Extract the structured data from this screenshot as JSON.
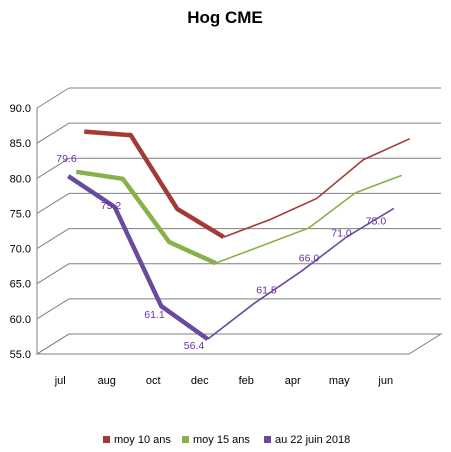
{
  "chart_data": {
    "type": "line",
    "subtype": "3d-line",
    "title": "Hog CME",
    "categories": [
      "jul",
      "aug",
      "oct",
      "dec",
      "feb",
      "apr",
      "may",
      "jun"
    ],
    "ylim": [
      55,
      90
    ],
    "yticks": [
      "55.0",
      "60.0",
      "65.0",
      "70.0",
      "75.0",
      "80.0",
      "85.0",
      "90.0"
    ],
    "grid": true,
    "legend_position": "bottom",
    "series": [
      {
        "name": "moy 10 ans",
        "color": "#a33a36",
        "values": [
          84.5,
          84.0,
          73.5,
          69.5,
          72.0,
          75.0,
          80.5,
          83.5
        ]
      },
      {
        "name": "moy 15 ans",
        "color": "#8ab04a",
        "values": [
          79.5,
          78.5,
          69.5,
          66.5,
          69.0,
          71.5,
          76.5,
          79.0
        ]
      },
      {
        "name": "au 22 juin 2018",
        "color": "#6a4a9c",
        "values": [
          79.6,
          75.2,
          61.1,
          56.4,
          61.5,
          66.0,
          71.0,
          75.0
        ],
        "data_labels": [
          "79.6",
          "75.2",
          "61.1",
          "56.4",
          "61.5",
          "66.0",
          "71.0",
          "75.0"
        ]
      }
    ]
  }
}
